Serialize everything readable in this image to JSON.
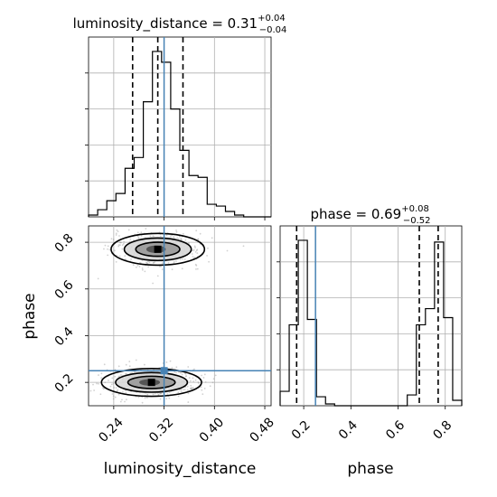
{
  "chart_data": {
    "type": "corner",
    "parameters": [
      "luminosity_distance",
      "phase"
    ],
    "truths": {
      "luminosity_distance": 0.32,
      "phase": 0.25
    },
    "titles": {
      "luminosity_distance": {
        "prefix": "luminosity_distance = ",
        "value": "0.31",
        "plus": "+0.04",
        "minus": "−0.04"
      },
      "phase": {
        "prefix": "phase = ",
        "value": "0.69",
        "plus": "+0.08",
        "minus": "−0.52"
      }
    },
    "panels": [
      {
        "id": "hist-luminosity-distance",
        "type": "histogram",
        "parameter": "luminosity_distance",
        "xlim": [
          0.2,
          0.49
        ],
        "xticks": [
          0.24,
          0.32,
          0.4,
          0.48
        ],
        "ylim": [
          0,
          1.0
        ],
        "quantiles": [
          0.27,
          0.31,
          0.35
        ],
        "bin_edges": [
          0.2,
          0.2145,
          0.229,
          0.2435,
          0.258,
          0.2725,
          0.287,
          0.3015,
          0.316,
          0.3305,
          0.345,
          0.3595,
          0.374,
          0.3885,
          0.403,
          0.4175,
          0.432,
          0.4465,
          0.461,
          0.4755,
          0.49
        ],
        "counts": [
          0.01,
          0.04,
          0.09,
          0.13,
          0.27,
          0.33,
          0.64,
          0.92,
          0.86,
          0.6,
          0.37,
          0.23,
          0.22,
          0.07,
          0.06,
          0.03,
          0.01,
          0.0,
          0.0,
          0.0
        ]
      },
      {
        "id": "hist-phase",
        "type": "histogram",
        "parameter": "phase",
        "xlim": [
          0.1,
          0.87
        ],
        "xticks": [
          0.2,
          0.4,
          0.6,
          0.8
        ],
        "ylim": [
          0,
          1.0
        ],
        "quantiles": [
          0.17,
          0.69,
          0.77
        ],
        "bin_edges": [
          0.1,
          0.1385,
          0.177,
          0.2155,
          0.254,
          0.2925,
          0.331,
          0.3695,
          0.408,
          0.4465,
          0.485,
          0.5235,
          0.562,
          0.6005,
          0.639,
          0.6775,
          0.716,
          0.7545,
          0.793,
          0.8315,
          0.87
        ],
        "counts": [
          0.08,
          0.45,
          0.92,
          0.48,
          0.05,
          0.01,
          0.0,
          0.0,
          0.0,
          0.0,
          0.0,
          0.0,
          0.0,
          0.0,
          0.06,
          0.45,
          0.54,
          0.91,
          0.49,
          0.03
        ]
      },
      {
        "id": "contour-phase-vs-luminosity-distance",
        "type": "2d-density",
        "x_parameter": "luminosity_distance",
        "y_parameter": "phase",
        "xlim": [
          0.2,
          0.49
        ],
        "ylim": [
          0.1,
          0.87
        ],
        "xticks": [
          0.24,
          0.32,
          0.4,
          0.48
        ],
        "yticks": [
          0.2,
          0.4,
          0.6,
          0.8
        ],
        "modes": [
          {
            "center": [
              0.31,
              0.77
            ],
            "spread": [
              0.028,
              0.04
            ]
          },
          {
            "center": [
              0.3,
              0.2
            ],
            "spread": [
              0.03,
              0.035
            ]
          }
        ]
      }
    ],
    "xlabels": [
      "luminosity_distance",
      "phase"
    ],
    "ylabels": [
      "",
      "phase"
    ],
    "tick_labels": {
      "luminosity_distance": [
        "0.24",
        "0.32",
        "0.40",
        "0.48"
      ],
      "phase": [
        "0.2",
        "0.4",
        "0.6",
        "0.8"
      ]
    },
    "grid": true,
    "colors": {
      "line": "#000000",
      "truth": "#4682b4",
      "points": "#999999",
      "fill_dark": "#555555",
      "fill_mid": "#a0a0a0"
    }
  }
}
